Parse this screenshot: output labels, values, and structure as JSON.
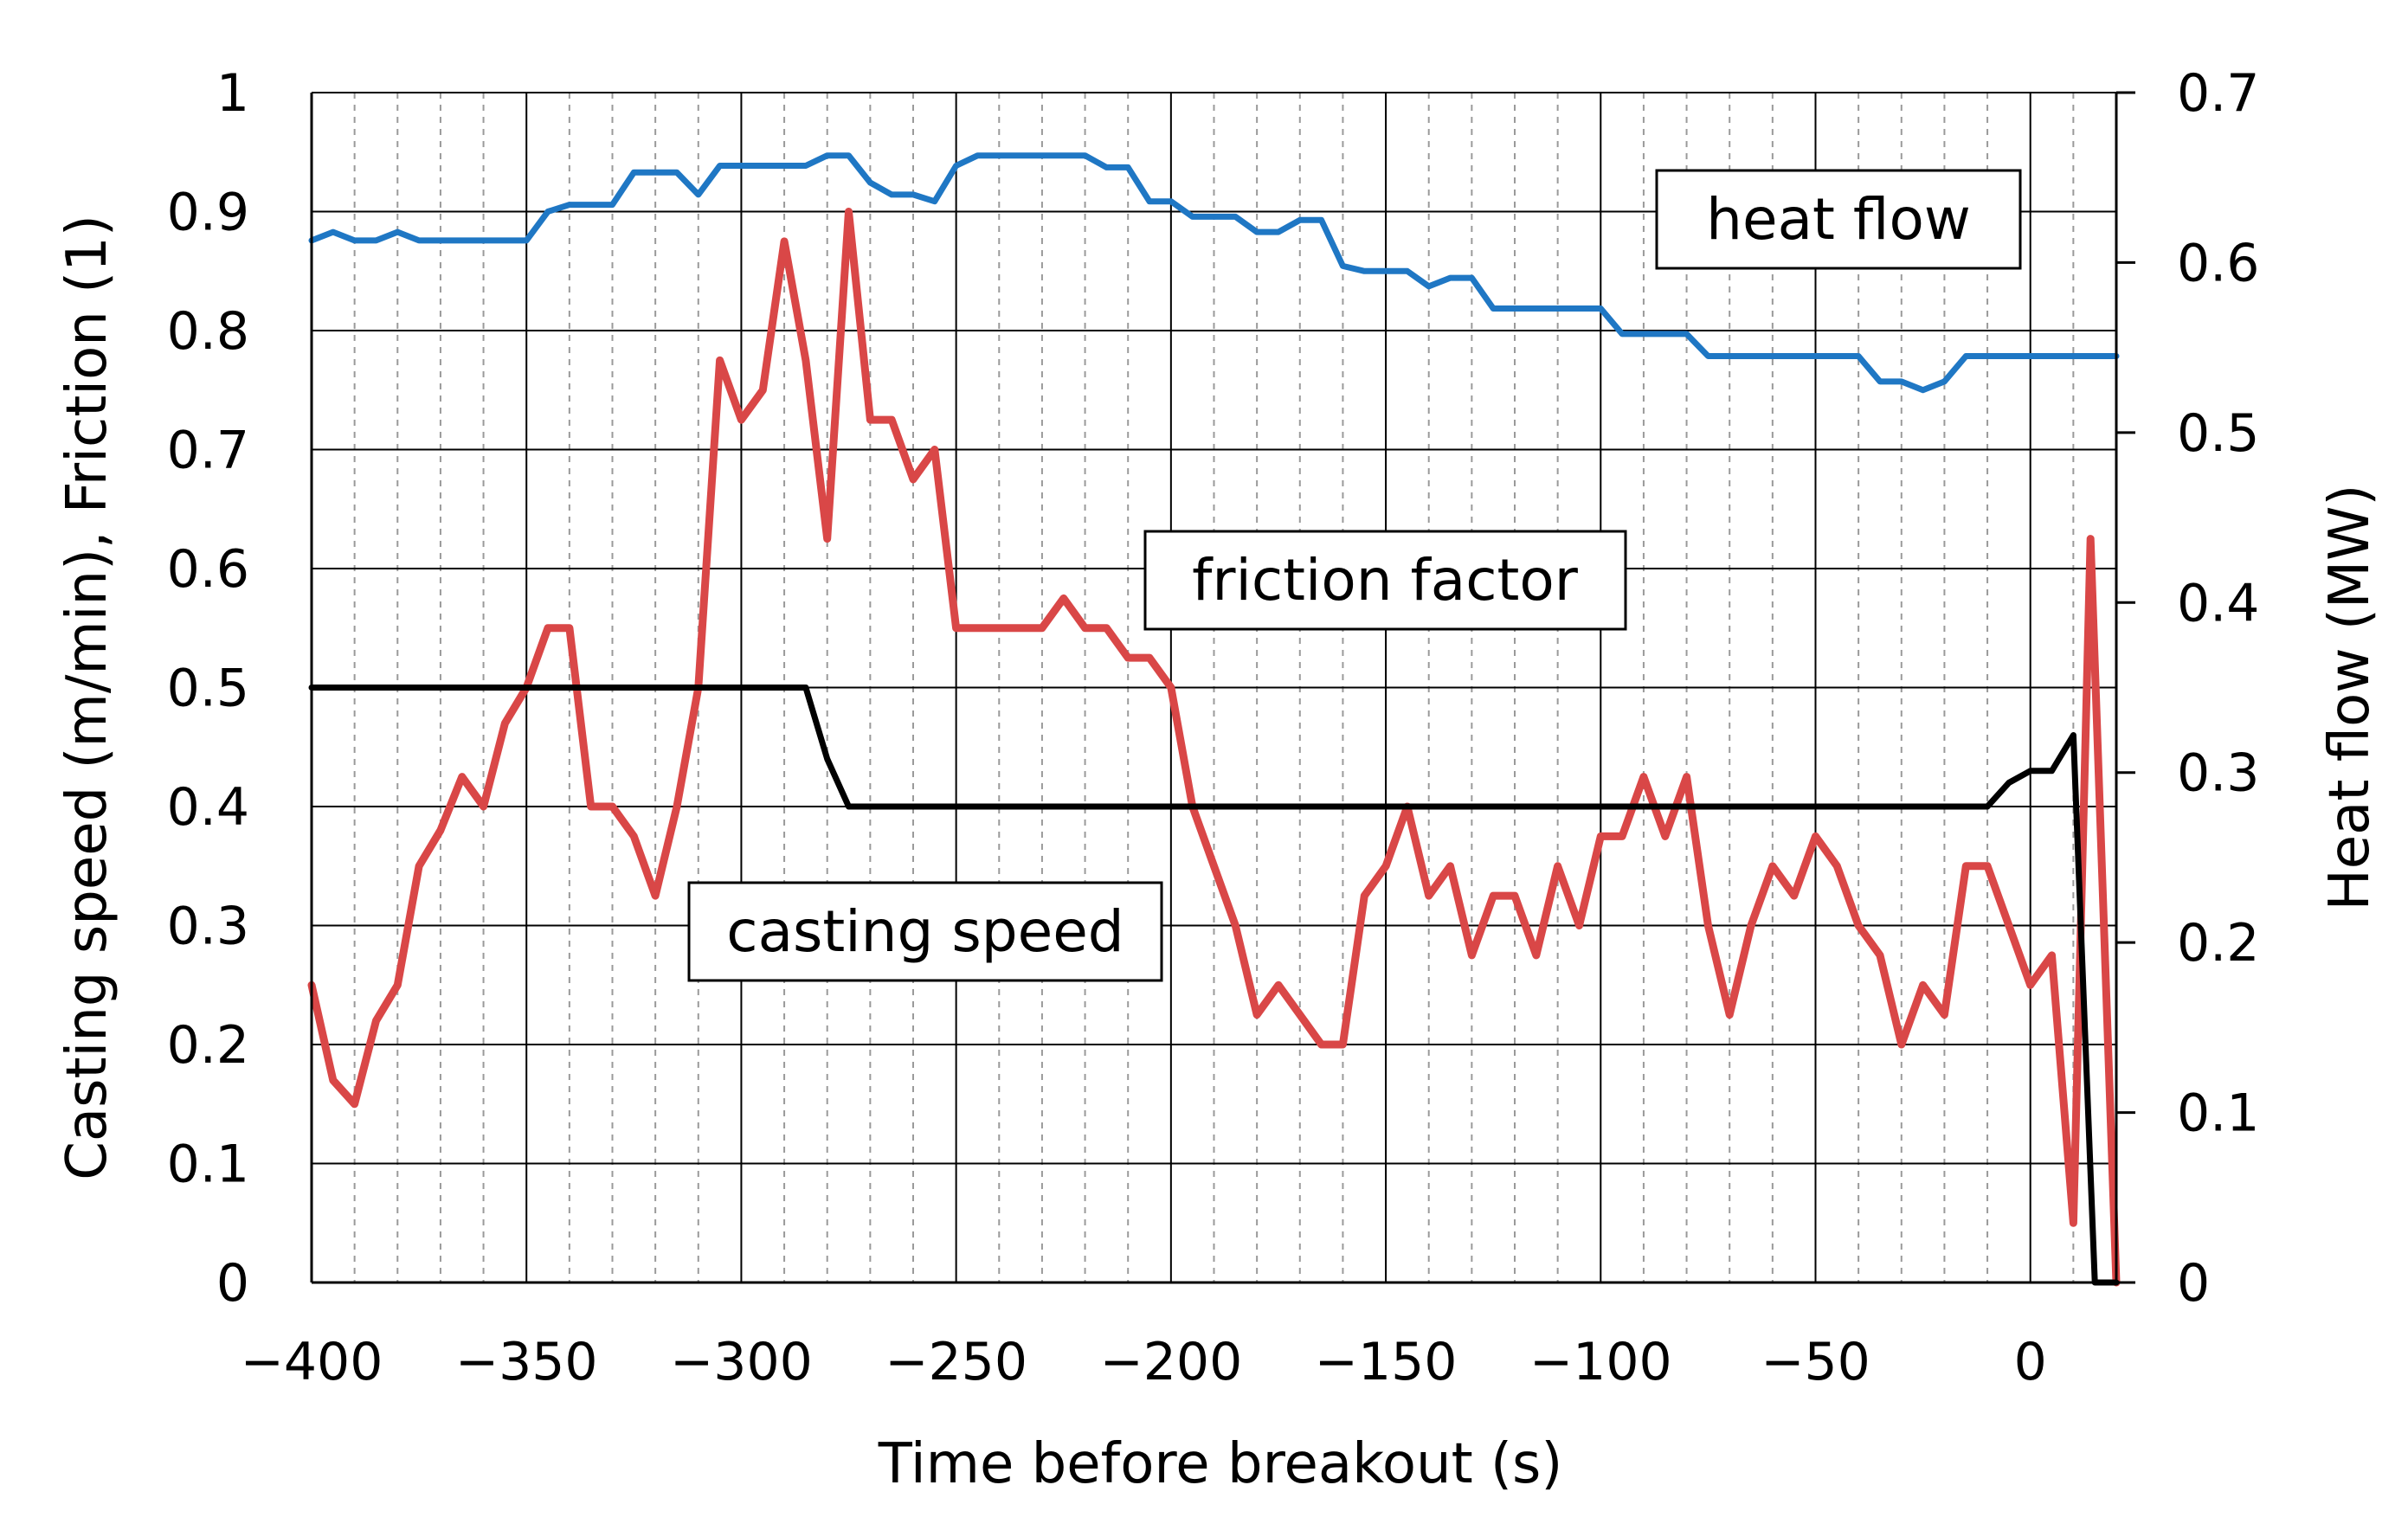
{
  "chart_data": {
    "type": "line",
    "title": "",
    "xlabel": "Time before breakout (s)",
    "ylabel": "Casting speed (m/min), Friction (1)",
    "y2label": "Heat flow (MW)",
    "xlim": [
      -400,
      20
    ],
    "ylim": [
      0,
      1
    ],
    "y2lim": [
      0,
      0.7
    ],
    "x_ticks": [
      -400,
      -350,
      -300,
      -250,
      -200,
      -150,
      -100,
      -50,
      0
    ],
    "x_tick_labels": [
      "−400",
      "−350",
      "−300",
      "−250",
      "−200",
      "−150",
      "−100",
      "−50",
      "0"
    ],
    "y_ticks": [
      0,
      0.1,
      0.2,
      0.3,
      0.4,
      0.5,
      0.6,
      0.7,
      0.8,
      0.9,
      1
    ],
    "y_tick_labels": [
      "0",
      "0.1",
      "0.2",
      "0.3",
      "0.4",
      "0.5",
      "0.6",
      "0.7",
      "0.8",
      "0.9",
      "1"
    ],
    "y2_ticks": [
      0,
      0.1,
      0.2,
      0.3,
      0.4,
      0.5,
      0.6,
      0.7
    ],
    "y2_tick_labels": [
      "0",
      "0.1",
      "0.2",
      "0.3",
      "0.4",
      "0.5",
      "0.6",
      "0.7"
    ],
    "grid": {
      "major_x_step": 50,
      "minor_x_step": 10,
      "y_step": 0.1
    },
    "series": [
      {
        "name": "heat flow",
        "label": "heat flow",
        "axis": "right",
        "color": "#1f77c4",
        "points": [
          [
            -400,
            0.613
          ],
          [
            -395,
            0.618
          ],
          [
            -390,
            0.613
          ],
          [
            -385,
            0.613
          ],
          [
            -380,
            0.618
          ],
          [
            -375,
            0.613
          ],
          [
            -370,
            0.613
          ],
          [
            -365,
            0.613
          ],
          [
            -360,
            0.613
          ],
          [
            -355,
            0.613
          ],
          [
            -350,
            0.613
          ],
          [
            -345,
            0.63
          ],
          [
            -340,
            0.634
          ],
          [
            -335,
            0.634
          ],
          [
            -330,
            0.634
          ],
          [
            -325,
            0.653
          ],
          [
            -320,
            0.653
          ],
          [
            -315,
            0.653
          ],
          [
            -310,
            0.64
          ],
          [
            -305,
            0.657
          ],
          [
            -300,
            0.657
          ],
          [
            -295,
            0.657
          ],
          [
            -290,
            0.657
          ],
          [
            -285,
            0.657
          ],
          [
            -280,
            0.663
          ],
          [
            -275,
            0.663
          ],
          [
            -270,
            0.647
          ],
          [
            -265,
            0.64
          ],
          [
            -260,
            0.64
          ],
          [
            -255,
            0.636
          ],
          [
            -250,
            0.657
          ],
          [
            -245,
            0.663
          ],
          [
            -240,
            0.663
          ],
          [
            -235,
            0.663
          ],
          [
            -230,
            0.663
          ],
          [
            -225,
            0.663
          ],
          [
            -220,
            0.663
          ],
          [
            -215,
            0.656
          ],
          [
            -210,
            0.656
          ],
          [
            -205,
            0.636
          ],
          [
            -200,
            0.636
          ],
          [
            -195,
            0.627
          ],
          [
            -190,
            0.627
          ],
          [
            -185,
            0.627
          ],
          [
            -180,
            0.618
          ],
          [
            -175,
            0.618
          ],
          [
            -170,
            0.625
          ],
          [
            -165,
            0.625
          ],
          [
            -160,
            0.598
          ],
          [
            -155,
            0.595
          ],
          [
            -150,
            0.595
          ],
          [
            -145,
            0.595
          ],
          [
            -140,
            0.586
          ],
          [
            -135,
            0.591
          ],
          [
            -130,
            0.591
          ],
          [
            -125,
            0.573
          ],
          [
            -120,
            0.573
          ],
          [
            -115,
            0.573
          ],
          [
            -110,
            0.573
          ],
          [
            -105,
            0.573
          ],
          [
            -100,
            0.573
          ],
          [
            -95,
            0.558
          ],
          [
            -90,
            0.558
          ],
          [
            -85,
            0.558
          ],
          [
            -80,
            0.558
          ],
          [
            -75,
            0.545
          ],
          [
            -70,
            0.545
          ],
          [
            -65,
            0.545
          ],
          [
            -60,
            0.545
          ],
          [
            -55,
            0.545
          ],
          [
            -50,
            0.545
          ],
          [
            -45,
            0.545
          ],
          [
            -40,
            0.545
          ],
          [
            -35,
            0.53
          ],
          [
            -30,
            0.53
          ],
          [
            -25,
            0.525
          ],
          [
            -20,
            0.53
          ],
          [
            -15,
            0.545
          ],
          [
            -10,
            0.545
          ],
          [
            -5,
            0.545
          ],
          [
            0,
            0.545
          ],
          [
            5,
            0.545
          ],
          [
            10,
            0.545
          ],
          [
            15,
            0.545
          ],
          [
            20,
            0.545
          ]
        ]
      },
      {
        "name": "friction factor",
        "label": "friction factor",
        "axis": "left",
        "color": "#d94747",
        "points": [
          [
            -400,
            0.25
          ],
          [
            -395,
            0.17
          ],
          [
            -390,
            0.15
          ],
          [
            -385,
            0.22
          ],
          [
            -380,
            0.25
          ],
          [
            -375,
            0.35
          ],
          [
            -370,
            0.38
          ],
          [
            -365,
            0.425
          ],
          [
            -360,
            0.4
          ],
          [
            -355,
            0.47
          ],
          [
            -350,
            0.5
          ],
          [
            -345,
            0.55
          ],
          [
            -340,
            0.55
          ],
          [
            -335,
            0.4
          ],
          [
            -330,
            0.4
          ],
          [
            -325,
            0.375
          ],
          [
            -320,
            0.325
          ],
          [
            -315,
            0.4
          ],
          [
            -310,
            0.5
          ],
          [
            -305,
            0.775
          ],
          [
            -300,
            0.725
          ],
          [
            -295,
            0.75
          ],
          [
            -290,
            0.875
          ],
          [
            -285,
            0.775
          ],
          [
            -280,
            0.625
          ],
          [
            -275,
            0.9
          ],
          [
            -270,
            0.725
          ],
          [
            -265,
            0.725
          ],
          [
            -260,
            0.675
          ],
          [
            -255,
            0.7
          ],
          [
            -250,
            0.55
          ],
          [
            -245,
            0.55
          ],
          [
            -240,
            0.55
          ],
          [
            -235,
            0.55
          ],
          [
            -230,
            0.55
          ],
          [
            -225,
            0.575
          ],
          [
            -220,
            0.55
          ],
          [
            -215,
            0.55
          ],
          [
            -210,
            0.525
          ],
          [
            -205,
            0.525
          ],
          [
            -200,
            0.5
          ],
          [
            -195,
            0.4
          ],
          [
            -190,
            0.35
          ],
          [
            -185,
            0.3
          ],
          [
            -180,
            0.225
          ],
          [
            -175,
            0.25
          ],
          [
            -170,
            0.225
          ],
          [
            -165,
            0.2
          ],
          [
            -160,
            0.2
          ],
          [
            -155,
            0.325
          ],
          [
            -150,
            0.35
          ],
          [
            -145,
            0.4
          ],
          [
            -140,
            0.325
          ],
          [
            -135,
            0.35
          ],
          [
            -130,
            0.275
          ],
          [
            -125,
            0.325
          ],
          [
            -120,
            0.325
          ],
          [
            -115,
            0.275
          ],
          [
            -110,
            0.35
          ],
          [
            -105,
            0.3
          ],
          [
            -100,
            0.375
          ],
          [
            -95,
            0.375
          ],
          [
            -90,
            0.425
          ],
          [
            -85,
            0.375
          ],
          [
            -80,
            0.425
          ],
          [
            -75,
            0.3
          ],
          [
            -70,
            0.225
          ],
          [
            -65,
            0.3
          ],
          [
            -60,
            0.35
          ],
          [
            -55,
            0.325
          ],
          [
            -50,
            0.375
          ],
          [
            -45,
            0.35
          ],
          [
            -40,
            0.3
          ],
          [
            -35,
            0.275
          ],
          [
            -30,
            0.2
          ],
          [
            -25,
            0.25
          ],
          [
            -20,
            0.225
          ],
          [
            -15,
            0.35
          ],
          [
            -10,
            0.35
          ],
          [
            -5,
            0.3
          ],
          [
            0,
            0.25
          ],
          [
            5,
            0.275
          ],
          [
            10,
            0.05
          ],
          [
            14,
            0.625
          ],
          [
            20,
            0.0
          ]
        ]
      },
      {
        "name": "casting speed",
        "label": "casting speed",
        "axis": "left",
        "color": "#000000",
        "points": [
          [
            -400,
            0.5
          ],
          [
            -285,
            0.5
          ],
          [
            -280,
            0.44
          ],
          [
            -275,
            0.4
          ],
          [
            -10,
            0.4
          ],
          [
            -5,
            0.42
          ],
          [
            0,
            0.43
          ],
          [
            5,
            0.43
          ],
          [
            10,
            0.46
          ],
          [
            15,
            0.0
          ],
          [
            20,
            0.0
          ]
        ]
      }
    ]
  }
}
